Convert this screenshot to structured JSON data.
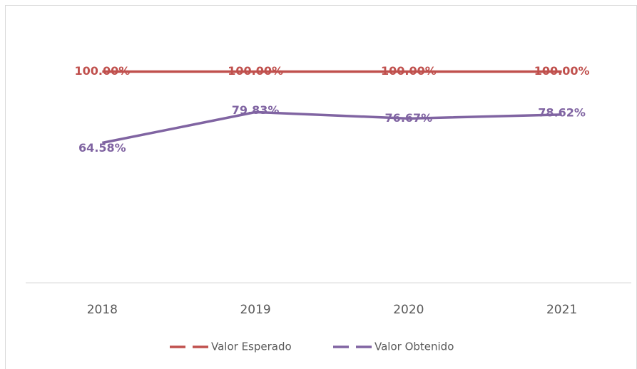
{
  "chart_data": {
    "type": "line",
    "categories": [
      "2018",
      "2019",
      "2020",
      "2021"
    ],
    "series": [
      {
        "name": "Valor Esperado",
        "color": "#c0504d",
        "values": [
          100,
          100,
          100,
          100
        ],
        "value_labels": [
          "100.00%",
          "100.00%",
          "100.00%",
          "100.00%"
        ]
      },
      {
        "name": "Valor Obtenido",
        "color": "#8064a2",
        "values": [
          64.58,
          79.83,
          76.67,
          78.62
        ],
        "value_labels": [
          "64.58%",
          "79.83%",
          "76.67%",
          "78.62%"
        ]
      }
    ],
    "ylim": [
      -5,
      120
    ],
    "legend": "bottom"
  }
}
